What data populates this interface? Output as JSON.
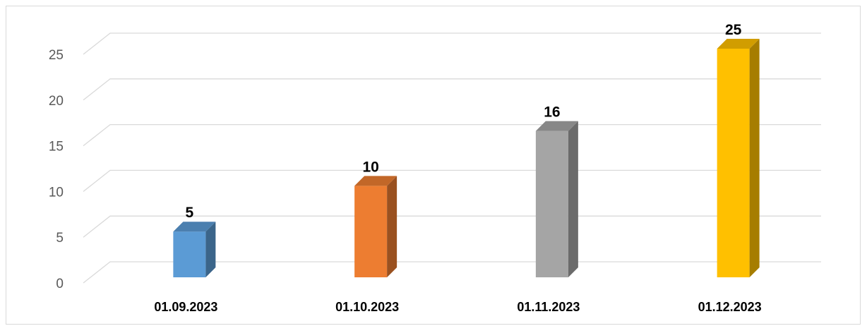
{
  "chart_data": {
    "type": "bar",
    "title": "",
    "xlabel": "",
    "ylabel": "",
    "categories": [
      "01.09.2023",
      "01.10.2023",
      "01.11.2023",
      "01.12.2023"
    ],
    "values": [
      5,
      10,
      16,
      25
    ],
    "data_labels": [
      "5",
      "10",
      "16",
      "25"
    ],
    "ylim": [
      0,
      25
    ],
    "yticks": [
      "0",
      "5",
      "10",
      "15",
      "20",
      "25"
    ],
    "grid": true,
    "legend": "none",
    "bar_style": "3d",
    "colors": [
      "#5b9bd5",
      "#ed7d31",
      "#a5a5a5",
      "#ffc000"
    ]
  }
}
